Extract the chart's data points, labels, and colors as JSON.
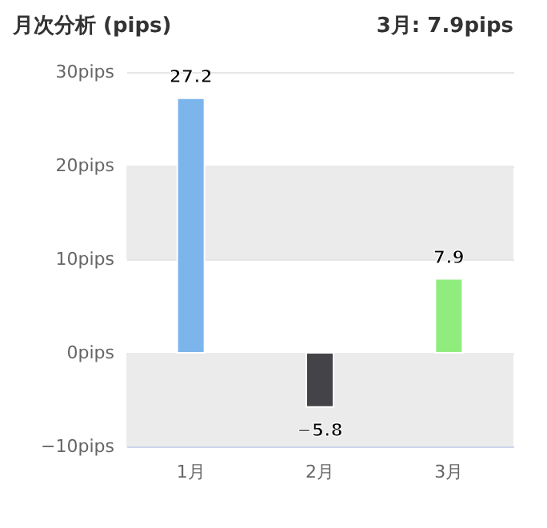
{
  "chart_data": {
    "type": "bar",
    "title": "月次分析 (pips)",
    "subtitle": "3月: 7.9pips",
    "categories": [
      "1月",
      "2月",
      "3月"
    ],
    "values": [
      27.2,
      -5.8,
      7.9
    ],
    "colors": [
      "#7cb5ec",
      "#434348",
      "#90ed7d"
    ],
    "value_labels": [
      "27.2",
      "−5.8",
      "7.9"
    ],
    "ylim": [
      -10,
      30
    ],
    "yticks": [
      {
        "value": -10,
        "label": "−10pips"
      },
      {
        "value": 0,
        "label": "0pips"
      },
      {
        "value": 10,
        "label": "10pips"
      },
      {
        "value": 20,
        "label": "20pips"
      },
      {
        "value": 30,
        "label": "30pips"
      }
    ],
    "bands": [
      {
        "axis": "y",
        "from": 10,
        "to": 20,
        "color": "#ebebeb"
      },
      {
        "axis": "y",
        "from": -10,
        "to": 0,
        "color": "#ebebeb"
      }
    ],
    "grid": true
  }
}
